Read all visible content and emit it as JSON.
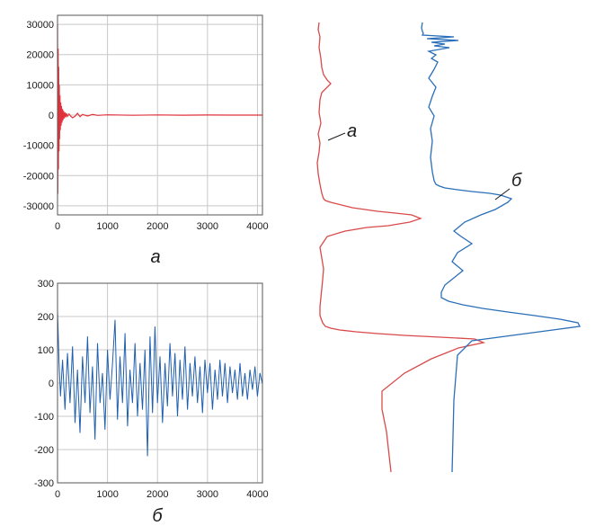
{
  "colors": {
    "red": "#e0323a",
    "blue": "#1f5fae",
    "red_profile": "#d94a4a",
    "blue_profile": "#2a6fb8"
  },
  "chart_data": [
    {
      "type": "line",
      "caption": "а",
      "xlim": [
        0,
        4100
      ],
      "ylim": [
        -33000,
        33000
      ],
      "xticks": [
        0,
        1000,
        2000,
        3000,
        4000
      ],
      "yticks": [
        -30000,
        -20000,
        -10000,
        0,
        10000,
        20000,
        30000
      ],
      "grid": true,
      "series": [
        {
          "color": "#e0323a",
          "x": [
            0,
            6,
            12,
            18,
            24,
            30,
            36,
            42,
            48,
            56,
            64,
            72,
            80,
            90,
            100,
            110,
            120,
            135,
            150,
            165,
            180,
            200,
            230,
            260,
            300,
            350,
            400,
            450,
            500,
            600,
            700,
            800,
            1000,
            1500,
            2000,
            2500,
            3000,
            3500,
            4096
          ],
          "y": [
            30000,
            -26000,
            22000,
            -18000,
            16000,
            -12000,
            10000,
            -8000,
            6500,
            -5000,
            4200,
            -3500,
            3000,
            -2500,
            2000,
            -1700,
            1400,
            -1100,
            900,
            -700,
            600,
            -450,
            350,
            -300,
            -900,
            -400,
            600,
            -500,
            200,
            -300,
            200,
            -100,
            100,
            -50,
            50,
            -30,
            20,
            -10,
            0
          ]
        }
      ]
    },
    {
      "type": "line",
      "caption": "б",
      "xlim": [
        0,
        4100
      ],
      "ylim": [
        -300,
        300
      ],
      "xticks": [
        0,
        1000,
        2000,
        3000,
        4000
      ],
      "yticks": [
        -300,
        -200,
        -100,
        0,
        100,
        200,
        300
      ],
      "grid": true,
      "series": [
        {
          "color": "#1f5fae",
          "x": [
            0,
            30,
            60,
            100,
            150,
            200,
            250,
            300,
            350,
            400,
            450,
            500,
            550,
            600,
            650,
            700,
            750,
            800,
            850,
            900,
            950,
            1000,
            1050,
            1100,
            1150,
            1200,
            1250,
            1300,
            1350,
            1400,
            1450,
            1500,
            1550,
            1600,
            1650,
            1700,
            1750,
            1800,
            1850,
            1900,
            1950,
            2000,
            2050,
            2100,
            2150,
            2200,
            2250,
            2300,
            2350,
            2400,
            2450,
            2500,
            2550,
            2600,
            2650,
            2700,
            2750,
            2800,
            2850,
            2900,
            2950,
            3000,
            3050,
            3100,
            3150,
            3200,
            3250,
            3300,
            3350,
            3400,
            3450,
            3500,
            3550,
            3600,
            3650,
            3700,
            3750,
            3800,
            3850,
            3900,
            3950,
            4000,
            4050,
            4096
          ],
          "y": [
            220,
            60,
            -40,
            70,
            -80,
            90,
            -60,
            110,
            -120,
            40,
            -150,
            80,
            -60,
            140,
            -90,
            50,
            -170,
            120,
            -60,
            30,
            -140,
            100,
            -50,
            60,
            190,
            -110,
            80,
            -60,
            150,
            -130,
            40,
            -60,
            120,
            -100,
            60,
            -80,
            100,
            -220,
            140,
            -90,
            170,
            -60,
            80,
            -120,
            60,
            -70,
            120,
            -40,
            90,
            -100,
            70,
            -50,
            110,
            -80,
            60,
            -40,
            80,
            -60,
            50,
            -90,
            70,
            -30,
            60,
            -80,
            40,
            -50,
            70,
            -40,
            60,
            -60,
            50,
            -30,
            40,
            -50,
            60,
            -40,
            30,
            -50,
            40,
            -20,
            50,
            -40,
            30,
            0
          ]
        }
      ]
    },
    {
      "type": "line",
      "orientation": "vertical",
      "series": [
        {
          "name": "а",
          "color": "#d94a4a",
          "x": [
            5,
            4,
            6,
            5,
            7,
            8,
            10,
            14,
            18,
            14,
            8,
            6,
            5,
            7,
            4,
            6,
            5,
            3,
            4,
            6,
            8,
            10,
            12,
            18,
            26,
            34,
            42,
            56,
            70,
            90,
            108,
            118,
            106,
            82,
            58,
            34,
            14,
            6,
            8,
            10,
            9,
            8,
            7,
            6,
            6,
            9,
            12,
            18,
            28,
            46,
            70,
            100,
            140,
            178,
            188,
            160,
            130,
            100,
            75,
            75,
            80,
            85
          ],
          "y": [
            0,
            8,
            16,
            28,
            40,
            50,
            58,
            64,
            68,
            72,
            78,
            86,
            100,
            112,
            124,
            134,
            144,
            156,
            168,
            180,
            190,
            196,
            198,
            200,
            202,
            204,
            206,
            208,
            210,
            212,
            214,
            218,
            222,
            226,
            228,
            232,
            238,
            250,
            262,
            274,
            286,
            296,
            306,
            316,
            326,
            334,
            338,
            340,
            342,
            344,
            346,
            348,
            350,
            352,
            356,
            362,
            374,
            390,
            410,
            430,
            455,
            500
          ]
        },
        {
          "name": "б",
          "color": "#2a6fb8",
          "x": [
            5,
            4,
            5,
            6,
            5,
            40,
            10,
            45,
            15,
            30,
            18,
            35,
            12,
            20,
            15,
            22,
            18,
            12,
            20,
            16,
            12,
            18,
            14,
            16,
            14,
            16,
            18,
            20,
            24,
            30,
            44,
            60,
            80,
            92,
            104,
            100,
            86,
            70,
            52,
            40,
            48,
            60,
            44,
            38,
            50,
            40,
            30,
            26,
            26,
            34,
            50,
            72,
            100,
            130,
            158,
            178,
            180,
            150,
            120,
            90,
            60,
            44,
            40,
            38
          ],
          "y": [
            0,
            6,
            10,
            12,
            14,
            16,
            18,
            20,
            22,
            24,
            26,
            28,
            32,
            36,
            40,
            44,
            52,
            62,
            72,
            82,
            94,
            104,
            118,
            132,
            150,
            166,
            176,
            180,
            182,
            184,
            186,
            188,
            190,
            192,
            196,
            200,
            208,
            214,
            222,
            232,
            238,
            246,
            256,
            266,
            276,
            284,
            292,
            300,
            306,
            310,
            314,
            318,
            322,
            326,
            330,
            334,
            338,
            342,
            346,
            350,
            354,
            370,
            420,
            500
          ]
        }
      ],
      "annotations": [
        {
          "text": "а",
          "target_series": "а"
        },
        {
          "text": "б",
          "target_series": "б"
        }
      ]
    }
  ]
}
